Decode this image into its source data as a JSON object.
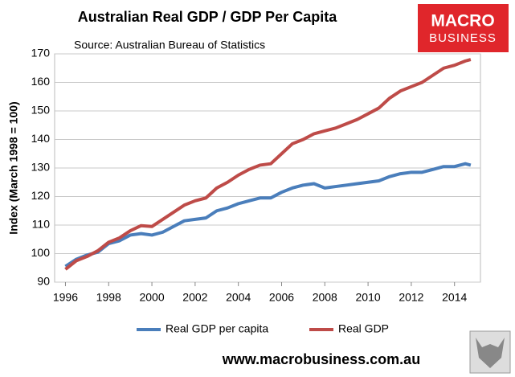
{
  "chart_data": {
    "type": "line",
    "title": "Australian Real GDP / GDP Per Capita",
    "subtitle": "Source: Australian Bureau of Statistics",
    "y_label": "Index (March 1998 = 100)",
    "x": [
      1996,
      1996.5,
      1997,
      1997.5,
      1998,
      1998.5,
      1999,
      1999.5,
      2000,
      2000.5,
      2001,
      2001.5,
      2002,
      2002.5,
      2003,
      2003.5,
      2004,
      2004.5,
      2005,
      2005.5,
      2006,
      2006.5,
      2007,
      2007.5,
      2008,
      2008.5,
      2009,
      2009.5,
      2010,
      2010.5,
      2011,
      2011.5,
      2012,
      2012.5,
      2013,
      2013.5,
      2014,
      2014.5,
      2014.75
    ],
    "series": [
      {
        "name": "Real GDP per capita",
        "color": "#4a7ebb",
        "values": [
          95.5,
          98,
          99.5,
          100.5,
          103.5,
          104.5,
          106.5,
          107,
          106.5,
          107.5,
          109.5,
          111.5,
          112,
          112.5,
          115,
          116,
          117.5,
          118.5,
          119.5,
          119.5,
          121.5,
          123,
          124,
          124.5,
          123,
          123.5,
          124,
          124.5,
          125,
          125.5,
          127,
          128,
          128.5,
          128.5,
          129.5,
          130.5,
          130.5,
          131.5,
          131
        ]
      },
      {
        "name": "Real GDP",
        "color": "#be4b48",
        "values": [
          94.5,
          97.5,
          99,
          101,
          104,
          105.5,
          108,
          109.8,
          109.5,
          112,
          114.5,
          117,
          118.5,
          119.5,
          123,
          125,
          127.5,
          129.5,
          131,
          131.5,
          135,
          138.5,
          140,
          142,
          143,
          144,
          145.5,
          147,
          149,
          151,
          154.5,
          157,
          158.5,
          160,
          162.5,
          165,
          166,
          167.5,
          168
        ]
      }
    ],
    "xlim": [
      1995.5,
      2015.2
    ],
    "xticks": [
      1996,
      1998,
      2000,
      2002,
      2004,
      2006,
      2008,
      2010,
      2012,
      2014
    ],
    "ylim": [
      90,
      170
    ],
    "yticks": [
      90,
      100,
      110,
      120,
      130,
      140,
      150,
      160,
      170
    ],
    "grid": true,
    "legend": "bottom"
  },
  "logo": {
    "line1": "MACRO",
    "line2": "BUSINESS"
  },
  "website": "www.macrobusiness.com.au"
}
